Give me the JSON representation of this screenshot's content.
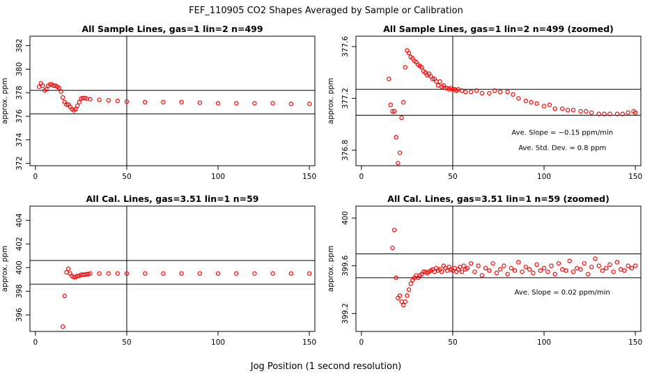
{
  "figure": {
    "title": "FEF_110905  CO2 Shapes Averaged by Sample or Calibration",
    "xlabel": "Jog Position (1 second resolution)"
  },
  "colors": {
    "points": "#ff0000",
    "lines": "#000000",
    "background": "#ffffff"
  },
  "chart_data": [
    {
      "type": "scatter",
      "title": "All Sample Lines, gas=1 lin=2 n=499",
      "xlabel": "",
      "ylabel": "approx. ppm",
      "xlim": [
        -3,
        153
      ],
      "ylim": [
        371.8,
        382.8
      ],
      "xticks": [
        0,
        50,
        100,
        150
      ],
      "yticks": [
        372,
        374,
        376,
        378,
        380,
        382
      ],
      "vline": 50,
      "hlines": [
        376.2,
        378.2
      ],
      "annotations": [],
      "series": [
        {
          "name": "sample",
          "x": [
            2,
            3,
            4,
            5,
            6,
            7,
            8,
            9,
            10,
            11,
            12,
            13,
            14,
            15,
            16,
            17,
            18,
            19,
            20,
            21,
            22,
            23,
            24,
            25,
            26,
            27,
            28,
            30,
            35,
            40,
            45,
            50,
            60,
            70,
            80,
            90,
            100,
            110,
            120,
            130,
            140,
            150
          ],
          "y": [
            378.5,
            378.8,
            378.6,
            378.2,
            378.3,
            378.6,
            378.7,
            378.7,
            378.6,
            378.6,
            378.5,
            378.4,
            378.1,
            377.6,
            377.2,
            377.0,
            377.0,
            376.8,
            376.6,
            376.5,
            376.6,
            376.9,
            377.2,
            377.5,
            377.55,
            377.55,
            377.5,
            377.45,
            377.4,
            377.35,
            377.3,
            377.25,
            377.2,
            377.2,
            377.2,
            377.15,
            377.1,
            377.1,
            377.1,
            377.1,
            377.05,
            377.05
          ]
        }
      ]
    },
    {
      "type": "scatter",
      "title": "All Sample Lines, gas=1 lin=2 n=499 (zoomed)",
      "xlabel": "",
      "ylabel": "approx. ppm",
      "xlim": [
        -3,
        153
      ],
      "ylim": [
        376.68,
        377.68
      ],
      "xticks": [
        0,
        50,
        100,
        150
      ],
      "yticks": [
        376.8,
        377.2,
        377.6
      ],
      "vline": 50,
      "hlines": [
        377.27,
        377.07
      ],
      "annotations": [
        {
          "text": "Ave. Slope =  −0.15  ppm/min",
          "x": 110,
          "y": 376.92
        },
        {
          "text": "Ave. Std. Dev. =  0.8  ppm",
          "x": 110,
          "y": 376.8
        }
      ],
      "series": [
        {
          "name": "sample zoomed",
          "x": [
            15,
            16,
            17,
            18,
            19,
            20,
            21,
            22,
            23,
            24,
            25,
            26,
            27,
            28,
            29,
            30,
            31,
            32,
            33,
            34,
            35,
            36,
            37,
            38,
            39,
            40,
            41,
            42,
            43,
            44,
            45,
            46,
            47,
            48,
            49,
            50,
            51,
            52,
            53,
            55,
            57,
            60,
            63,
            66,
            70,
            73,
            76,
            80,
            83,
            86,
            90,
            93,
            96,
            100,
            103,
            106,
            110,
            113,
            116,
            120,
            123,
            126,
            130,
            133,
            136,
            140,
            143,
            146,
            149,
            150
          ],
          "y": [
            377.35,
            377.15,
            377.1,
            377.1,
            376.9,
            376.7,
            376.78,
            377.05,
            377.17,
            377.44,
            377.57,
            377.55,
            377.52,
            377.51,
            377.49,
            377.48,
            377.46,
            377.45,
            377.44,
            377.41,
            377.4,
            377.38,
            377.39,
            377.37,
            377.35,
            377.35,
            377.33,
            377.3,
            377.33,
            377.29,
            377.3,
            377.28,
            377.28,
            377.27,
            377.28,
            377.27,
            377.27,
            377.26,
            377.27,
            377.26,
            377.25,
            377.25,
            377.26,
            377.24,
            377.24,
            377.26,
            377.25,
            377.25,
            377.23,
            377.2,
            377.18,
            377.17,
            377.16,
            377.14,
            377.15,
            377.12,
            377.12,
            377.11,
            377.11,
            377.1,
            377.1,
            377.09,
            377.08,
            377.08,
            377.08,
            377.08,
            377.08,
            377.09,
            377.1,
            377.09
          ]
        }
      ]
    },
    {
      "type": "scatter",
      "title": "All Cal. Lines, gas=3.51 lin=1 n=59",
      "xlabel": "",
      "ylabel": "approx. ppm",
      "xlim": [
        -3,
        153
      ],
      "ylim": [
        394.6,
        405.2
      ],
      "xticks": [
        0,
        50,
        100,
        150
      ],
      "yticks": [
        396,
        398,
        400,
        402,
        404
      ],
      "vline": 50,
      "hlines": [
        400.6,
        398.6
      ],
      "annotations": [],
      "series": [
        {
          "name": "calibration",
          "x": [
            15,
            16,
            17,
            18,
            19,
            20,
            21,
            22,
            23,
            24,
            25,
            26,
            27,
            28,
            29,
            30,
            35,
            40,
            45,
            50,
            60,
            70,
            80,
            90,
            100,
            110,
            120,
            130,
            140,
            150
          ],
          "y": [
            395.0,
            397.6,
            399.6,
            399.9,
            399.5,
            399.3,
            399.2,
            399.2,
            399.3,
            399.3,
            399.4,
            399.4,
            399.4,
            399.45,
            399.45,
            399.5,
            399.5,
            399.5,
            399.5,
            399.5,
            399.5,
            399.5,
            399.5,
            399.5,
            399.5,
            399.5,
            399.5,
            399.5,
            399.5,
            399.5
          ]
        }
      ]
    },
    {
      "type": "scatter",
      "title": "All Cal. Lines, gas=3.51 lin=1 n=59 (zoomed)",
      "xlabel": "",
      "ylabel": "approx. ppm",
      "xlim": [
        -3,
        153
      ],
      "ylim": [
        399.05,
        400.1
      ],
      "xticks": [
        0,
        50,
        100,
        150
      ],
      "yticks": [
        399.2,
        399.6,
        400.0
      ],
      "vline": 50,
      "hlines": [
        399.7,
        399.5
      ],
      "annotations": [
        {
          "text": "Ave. Slope =  0.02  ppm/min",
          "x": 110,
          "y": 399.36
        }
      ],
      "series": [
        {
          "name": "calibration zoomed",
          "x": [
            17,
            18,
            19,
            20,
            21,
            22,
            23,
            24,
            25,
            26,
            27,
            28,
            29,
            30,
            31,
            32,
            33,
            34,
            35,
            36,
            37,
            38,
            39,
            40,
            41,
            42,
            43,
            44,
            45,
            46,
            47,
            48,
            49,
            50,
            51,
            52,
            53,
            54,
            55,
            56,
            57,
            58,
            60,
            62,
            64,
            66,
            68,
            70,
            72,
            74,
            76,
            78,
            80,
            82,
            84,
            86,
            88,
            90,
            92,
            94,
            96,
            98,
            100,
            102,
            104,
            106,
            108,
            110,
            112,
            114,
            116,
            118,
            120,
            122,
            124,
            126,
            128,
            130,
            132,
            134,
            136,
            138,
            140,
            142,
            144,
            146,
            148,
            150
          ],
          "y": [
            399.75,
            399.9,
            399.5,
            399.33,
            399.35,
            399.3,
            399.27,
            399.3,
            399.35,
            399.4,
            399.45,
            399.48,
            399.5,
            399.52,
            399.5,
            399.52,
            399.53,
            399.55,
            399.55,
            399.54,
            399.55,
            399.56,
            399.57,
            399.55,
            399.58,
            399.56,
            399.57,
            399.55,
            399.6,
            399.58,
            399.56,
            399.59,
            399.57,
            399.56,
            399.58,
            399.55,
            399.57,
            399.59,
            399.55,
            399.6,
            399.57,
            399.58,
            399.62,
            399.55,
            399.6,
            399.52,
            399.58,
            399.56,
            399.62,
            399.54,
            399.57,
            399.6,
            399.53,
            399.58,
            399.56,
            399.63,
            399.55,
            399.59,
            399.57,
            399.54,
            399.61,
            399.56,
            399.58,
            399.55,
            399.6,
            399.53,
            399.62,
            399.57,
            399.56,
            399.64,
            399.55,
            399.58,
            399.57,
            399.62,
            399.53,
            399.59,
            399.66,
            399.6,
            399.56,
            399.58,
            399.61,
            399.55,
            399.63,
            399.57,
            399.56,
            399.6,
            399.58,
            399.6
          ]
        }
      ]
    }
  ]
}
